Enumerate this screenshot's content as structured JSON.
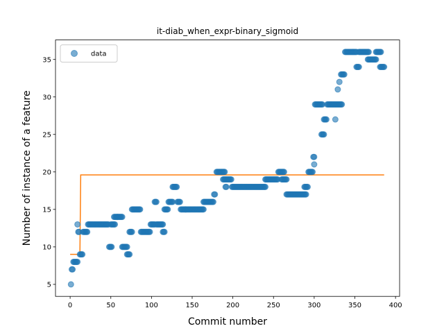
{
  "chart_data": {
    "type": "scatter",
    "title": "it-diab_when_expr-binary_sigmoid",
    "xlabel": "Commit number",
    "ylabel": "Number of instance of a feature",
    "xlim": [
      -18,
      405
    ],
    "ylim": [
      3.4,
      37.6
    ],
    "xticks": [
      0,
      50,
      100,
      150,
      200,
      250,
      300,
      350,
      400
    ],
    "yticks": [
      5,
      10,
      15,
      20,
      25,
      30,
      35
    ],
    "legend": {
      "position": "top-left",
      "entries": [
        "data"
      ]
    },
    "colors": {
      "data": "#1f77b4",
      "fit": "#ff7f0e"
    },
    "series": [
      {
        "name": "data",
        "kind": "scatter",
        "runs": [
          [
            1,
            1,
            5
          ],
          [
            2,
            3,
            7
          ],
          [
            4,
            6,
            8
          ],
          [
            7,
            9,
            8
          ],
          [
            9,
            9,
            13
          ],
          [
            10,
            11,
            12
          ],
          [
            12,
            15,
            9
          ],
          [
            16,
            21,
            12
          ],
          [
            22,
            47,
            13
          ],
          [
            48,
            51,
            10
          ],
          [
            50,
            55,
            13
          ],
          [
            54,
            58,
            14
          ],
          [
            58,
            64,
            14
          ],
          [
            64,
            70,
            10
          ],
          [
            70,
            73,
            9
          ],
          [
            73,
            76,
            12
          ],
          [
            76,
            86,
            15
          ],
          [
            87,
            98,
            12
          ],
          [
            99,
            104,
            13
          ],
          [
            104,
            106,
            16
          ],
          [
            106,
            114,
            13
          ],
          [
            114,
            116,
            12
          ],
          [
            116,
            120,
            15
          ],
          [
            121,
            126,
            16
          ],
          [
            126,
            131,
            18
          ],
          [
            132,
            135,
            16
          ],
          [
            136,
            142,
            15
          ],
          [
            142,
            164,
            15
          ],
          [
            164,
            176,
            16
          ],
          [
            177,
            178,
            17
          ],
          [
            180,
            190,
            20
          ],
          [
            188,
            189,
            19
          ],
          [
            190,
            198,
            19
          ],
          [
            191,
            192,
            18
          ],
          [
            199,
            240,
            18
          ],
          [
            240,
            255,
            19
          ],
          [
            256,
            263,
            20
          ],
          [
            260,
            266,
            19
          ],
          [
            266,
            290,
            17
          ],
          [
            288,
            292,
            18
          ],
          [
            293,
            298,
            20
          ],
          [
            299,
            300,
            22
          ],
          [
            300,
            300,
            21
          ],
          [
            301,
            310,
            29
          ],
          [
            309,
            312,
            25
          ],
          [
            312,
            315,
            27
          ],
          [
            316,
            326,
            29
          ],
          [
            326,
            326,
            27
          ],
          [
            327,
            334,
            29
          ],
          [
            329,
            329,
            31
          ],
          [
            331,
            331,
            32
          ],
          [
            333,
            337,
            33
          ],
          [
            338,
            352,
            36
          ],
          [
            352,
            355,
            34
          ],
          [
            355,
            367,
            36
          ],
          [
            366,
            376,
            35
          ],
          [
            376,
            382,
            36
          ],
          [
            381,
            386,
            34
          ]
        ]
      },
      {
        "name": "fit",
        "kind": "line",
        "points": [
          [
            0,
            9.0
          ],
          [
            12,
            9.0
          ],
          [
            13,
            19.6
          ],
          [
            386,
            19.6
          ]
        ]
      }
    ]
  }
}
